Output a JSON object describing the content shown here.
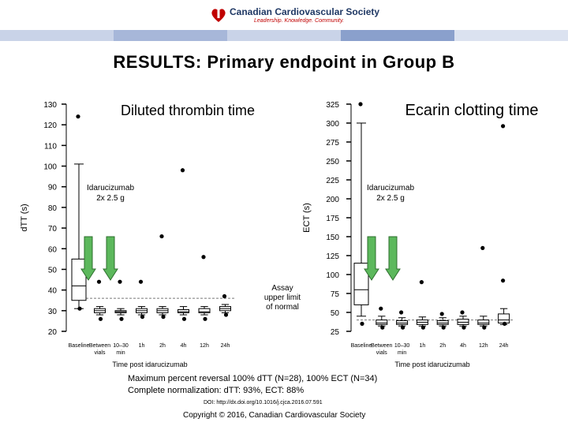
{
  "header": {
    "org_name": "Canadian Cardiovascular Society",
    "tagline": "Leadership. Knowledge. Community.",
    "band_colors": [
      "#c9d3e8",
      "#a7b7d9",
      "#c9d3e8",
      "#8aa0cc",
      "#dbe2f0"
    ]
  },
  "slide": {
    "title": "RESULTS: Primary endpoint in Group B",
    "summary_line1": "Maximum percent reversal 100% dTT (N=28), 100% ECT (N=34)",
    "summary_line2": "Complete normalization:  dTT: 93%,  ECT: 88%",
    "doi": "DOI: http://dx.doi.org/10.1016/j.cjca.2016.07.591",
    "copyright": "Copyright © 2016, Canadian Cardiovascular Society"
  },
  "colors": {
    "arrow": "#5cb85c",
    "arrow_stroke": "#2d6e2d",
    "box": "#000000",
    "reference": "#777777"
  },
  "chart_data": [
    {
      "type": "box",
      "title": "Diluted thrombin time",
      "ylabel": "dTT (s)",
      "xlabel": "Time post idarucizumab",
      "ylim": [
        20,
        130
      ],
      "yticks": [
        20,
        30,
        40,
        50,
        60,
        70,
        80,
        90,
        100,
        110,
        120,
        130
      ],
      "categories": [
        "Baseline",
        "Between vials",
        "10–30 min",
        "1h",
        "2h",
        "4h",
        "12h",
        "24h"
      ],
      "annotation_dose": "Idarucizumab\n2x 2.5 g",
      "annotation_limit": "Assay\nupper limit\nof normal",
      "reference_line": 36,
      "boxes": [
        {
          "min": 31,
          "q1": 35,
          "median": 42,
          "q3": 55,
          "max": 101
        },
        {
          "min": 28,
          "q1": 29,
          "median": 30,
          "q3": 31,
          "max": 32
        },
        {
          "min": 28,
          "q1": 29,
          "median": 29.5,
          "q3": 30,
          "max": 31
        },
        {
          "min": 28,
          "q1": 29,
          "median": 30,
          "q3": 31,
          "max": 32
        },
        {
          "min": 28,
          "q1": 29,
          "median": 30,
          "q3": 31,
          "max": 32
        },
        {
          "min": 28,
          "q1": 29,
          "median": 29.5,
          "q3": 30.5,
          "max": 32
        },
        {
          "min": 28,
          "q1": 29,
          "median": 29.5,
          "q3": 31,
          "max": 32
        },
        {
          "min": 29,
          "q1": 30,
          "median": 31,
          "q3": 32,
          "max": 33
        }
      ],
      "outliers": [
        {
          "x": 0,
          "y": 124
        },
        {
          "x": 0,
          "y": 31
        },
        {
          "x": 1,
          "y": 44
        },
        {
          "x": 1,
          "y": 26
        },
        {
          "x": 2,
          "y": 44
        },
        {
          "x": 2,
          "y": 26
        },
        {
          "x": 3,
          "y": 44
        },
        {
          "x": 3,
          "y": 27
        },
        {
          "x": 4,
          "y": 66
        },
        {
          "x": 4,
          "y": 27
        },
        {
          "x": 5,
          "y": 98
        },
        {
          "x": 5,
          "y": 26
        },
        {
          "x": 6,
          "y": 56
        },
        {
          "x": 6,
          "y": 26
        },
        {
          "x": 7,
          "y": 37
        },
        {
          "x": 7,
          "y": 28
        }
      ]
    },
    {
      "type": "box",
      "title": "Ecarin clotting time",
      "ylabel": "ECT (s)",
      "xlabel": "Time post idarucizumab",
      "ylim": [
        25,
        325
      ],
      "yticks": [
        25,
        50,
        75,
        100,
        125,
        150,
        175,
        200,
        225,
        250,
        275,
        300,
        325
      ],
      "categories": [
        "Baseline",
        "Between vials",
        "10–30 min",
        "1h",
        "2h",
        "4h",
        "12h",
        "24h"
      ],
      "annotation_dose": "Idarucizumab\n2x 2.5 g",
      "reference_line": 40,
      "boxes": [
        {
          "min": 45,
          "q1": 60,
          "median": 80,
          "q3": 115,
          "max": 300
        },
        {
          "min": 32,
          "q1": 34,
          "median": 36,
          "q3": 40,
          "max": 45
        },
        {
          "min": 32,
          "q1": 34,
          "median": 36,
          "q3": 39,
          "max": 43
        },
        {
          "min": 32,
          "q1": 34,
          "median": 37,
          "q3": 40,
          "max": 44
        },
        {
          "min": 32,
          "q1": 34,
          "median": 36,
          "q3": 39,
          "max": 43
        },
        {
          "min": 32,
          "q1": 34,
          "median": 37,
          "q3": 41,
          "max": 45
        },
        {
          "min": 32,
          "q1": 34,
          "median": 36,
          "q3": 40,
          "max": 45
        },
        {
          "min": 34,
          "q1": 36,
          "median": 40,
          "q3": 48,
          "max": 55
        }
      ],
      "outliers": [
        {
          "x": 0,
          "y": 325
        },
        {
          "x": 0,
          "y": 35
        },
        {
          "x": 1,
          "y": 55
        },
        {
          "x": 1,
          "y": 30
        },
        {
          "x": 2,
          "y": 50
        },
        {
          "x": 2,
          "y": 30
        },
        {
          "x": 3,
          "y": 90
        },
        {
          "x": 3,
          "y": 30
        },
        {
          "x": 4,
          "y": 48
        },
        {
          "x": 4,
          "y": 30
        },
        {
          "x": 5,
          "y": 50
        },
        {
          "x": 5,
          "y": 30
        },
        {
          "x": 6,
          "y": 135
        },
        {
          "x": 6,
          "y": 30
        },
        {
          "x": 7,
          "y": 92
        },
        {
          "x": 7,
          "y": 35
        },
        {
          "x": 7,
          "y": 296
        }
      ]
    }
  ]
}
